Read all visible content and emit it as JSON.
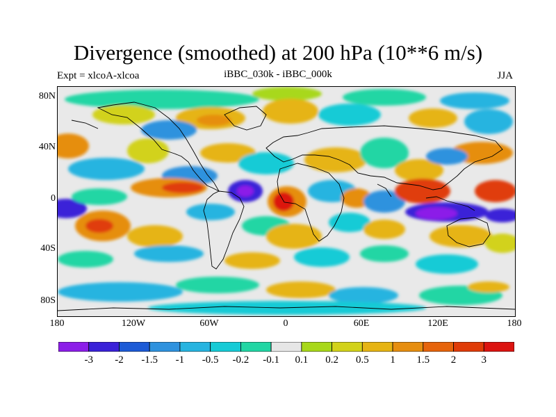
{
  "title": "Divergence (smoothed) at 200 hPa (10**6 m/s)",
  "subtitle_left": "Expt = xlcoA-xlcoa",
  "subtitle_center": "iBBC_030k - iBBC_000k",
  "subtitle_right": "JJA",
  "lat_labels": [
    "80N",
    "40N",
    "0",
    "40S",
    "80S"
  ],
  "lon_labels": [
    "180",
    "120W",
    "60W",
    "0",
    "60E",
    "120E",
    "180"
  ],
  "colorbar": {
    "labels": [
      "-3",
      "-2",
      "-1.5",
      "-1",
      "-0.5",
      "-0.2",
      "-0.1",
      "0.1",
      "0.2",
      "0.5",
      "1",
      "1.5",
      "2",
      "3"
    ],
    "colors": [
      "#8c1ee8",
      "#3a22d8",
      "#1d5bd6",
      "#2f92de",
      "#27b4e0",
      "#16cbd6",
      "#22d6a4",
      "#e6e6e6",
      "#a8d81a",
      "#d2d21a",
      "#e6b414",
      "#e68e10",
      "#e6640c",
      "#e03c08",
      "#dc1410"
    ]
  },
  "map": {
    "colors": {
      "ocean_neutral": "#e9e9e9",
      "coast": "#000000"
    }
  }
}
